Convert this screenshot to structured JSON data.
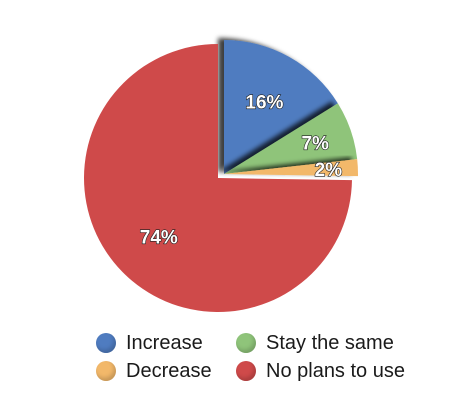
{
  "chart_data": {
    "type": "pie",
    "categories": [
      "Increase",
      "Stay the same",
      "Decrease",
      "No plans to use"
    ],
    "values": [
      16,
      7,
      2,
      74
    ],
    "labels": [
      "16%",
      "7%",
      "2%",
      "74%"
    ],
    "colors": [
      "#4f7cc0",
      "#8fc47a",
      "#f2b86a",
      "#cf4a4a"
    ],
    "exploded": [
      "Increase",
      "Stay the same",
      "Decrease"
    ],
    "start_angle_deg": 0,
    "direction": "clockwise",
    "legend_position": "bottom"
  },
  "legend": {
    "items": [
      {
        "label": "Increase",
        "color": "#4f7cc0"
      },
      {
        "label": "Stay the same",
        "color": "#8fc47a"
      },
      {
        "label": "Decrease",
        "color": "#f2b86a"
      },
      {
        "label": "No plans to use",
        "color": "#cf4a4a"
      }
    ]
  }
}
